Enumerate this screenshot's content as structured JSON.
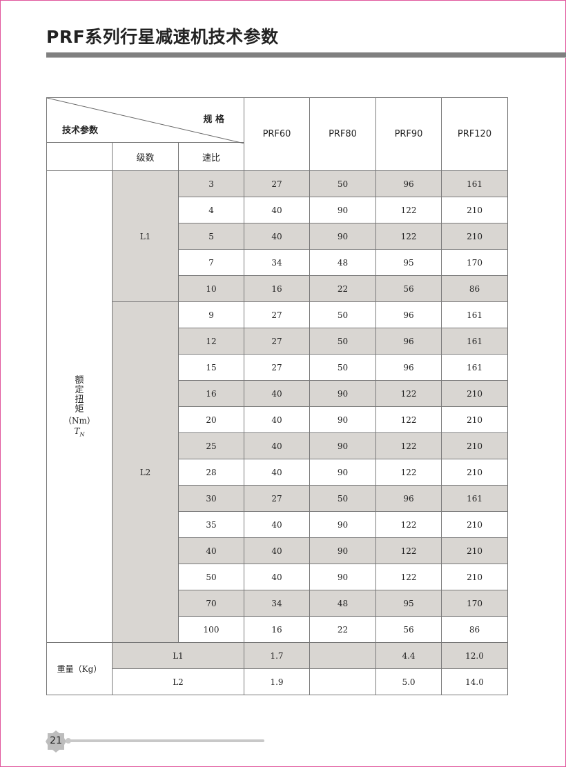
{
  "title": "PRF系列行星减速机技术参数",
  "header": {
    "spec_label": "规 格",
    "param_label": "技术参数",
    "stage_label": "级数",
    "ratio_label": "速比",
    "models": [
      "PRF60",
      "PRF80",
      "PRF90",
      "PRF120"
    ]
  },
  "torque": {
    "label": "额定扭矩",
    "unit": "（Nm）",
    "symbol": "T",
    "symbol_sub": "N",
    "groups": [
      {
        "stage": "L1",
        "rows": [
          {
            "ratio": "3",
            "values": [
              "27",
              "50",
              "96",
              "161"
            ]
          },
          {
            "ratio": "4",
            "values": [
              "40",
              "90",
              "122",
              "210"
            ]
          },
          {
            "ratio": "5",
            "values": [
              "40",
              "90",
              "122",
              "210"
            ]
          },
          {
            "ratio": "7",
            "values": [
              "34",
              "48",
              "95",
              "170"
            ]
          },
          {
            "ratio": "10",
            "values": [
              "16",
              "22",
              "56",
              "86"
            ]
          }
        ]
      },
      {
        "stage": "L2",
        "rows": [
          {
            "ratio": "9",
            "values": [
              "27",
              "50",
              "96",
              "161"
            ]
          },
          {
            "ratio": "12",
            "values": [
              "27",
              "50",
              "96",
              "161"
            ]
          },
          {
            "ratio": "15",
            "values": [
              "27",
              "50",
              "96",
              "161"
            ]
          },
          {
            "ratio": "16",
            "values": [
              "40",
              "90",
              "122",
              "210"
            ]
          },
          {
            "ratio": "20",
            "values": [
              "40",
              "90",
              "122",
              "210"
            ]
          },
          {
            "ratio": "25",
            "values": [
              "40",
              "90",
              "122",
              "210"
            ]
          },
          {
            "ratio": "28",
            "values": [
              "40",
              "90",
              "122",
              "210"
            ]
          },
          {
            "ratio": "30",
            "values": [
              "27",
              "50",
              "96",
              "161"
            ]
          },
          {
            "ratio": "35",
            "values": [
              "40",
              "90",
              "122",
              "210"
            ]
          },
          {
            "ratio": "40",
            "values": [
              "40",
              "90",
              "122",
              "210"
            ]
          },
          {
            "ratio": "50",
            "values": [
              "40",
              "90",
              "122",
              "210"
            ]
          },
          {
            "ratio": "70",
            "values": [
              "34",
              "48",
              "95",
              "170"
            ]
          },
          {
            "ratio": "100",
            "values": [
              "16",
              "22",
              "56",
              "86"
            ]
          }
        ]
      }
    ]
  },
  "weight": {
    "label": "重量（Kg）",
    "rows": [
      {
        "stage": "L1",
        "values": [
          "1.7",
          "",
          "4.4",
          "12.0"
        ]
      },
      {
        "stage": "L2",
        "values": [
          "1.9",
          "",
          "5.0",
          "14.0"
        ]
      }
    ]
  },
  "footer": {
    "page_number": "21"
  },
  "colors": {
    "shade": "#d9d6d2",
    "title_bar": "#808080",
    "page_border": "#e0559c"
  }
}
